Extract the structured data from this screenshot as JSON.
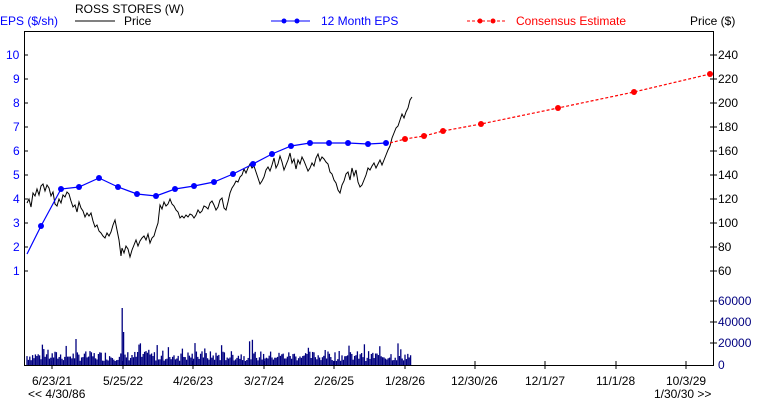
{
  "header": {
    "eps_axis_label": "EPS ($/sh)",
    "company": "ROSS STORES (W)",
    "legend_price": "Price",
    "legend_eps": "12 Month EPS",
    "legend_consensus": "Consensus Estimate",
    "price_axis_label": "Price ($)"
  },
  "footer": {
    "range_start": "<< 4/30/86",
    "range_end": "1/30/30 >>"
  },
  "colors": {
    "eps": "#0000ff",
    "consensus": "#ff0000",
    "price": "#000000",
    "volume": "#000080",
    "eps_axis_text": "#0000ff",
    "volume_axis_text": "#000080"
  },
  "chart_data": {
    "type": "line",
    "title": "ROSS STORES (W)",
    "xlabel": "",
    "x_ticks": [
      "6/23/21",
      "5/25/22",
      "4/26/23",
      "3/27/24",
      "2/26/25",
      "1/28/26",
      "12/30/26",
      "12/1/27",
      "11/1/28",
      "10/3/29"
    ],
    "left_axis": {
      "label": "EPS ($/sh)",
      "ticks": [
        1,
        2,
        3,
        4,
        5,
        6,
        7,
        8,
        9,
        10
      ]
    },
    "right_axis_price": {
      "label": "Price ($)",
      "ticks": [
        60,
        80,
        100,
        120,
        140,
        160,
        180,
        200,
        220,
        240
      ]
    },
    "right_axis_volume": {
      "ticks": [
        0,
        20000,
        40000,
        60000
      ]
    },
    "series": [
      {
        "name": "12 Month EPS",
        "axis": "left",
        "style": "solid line with dots",
        "dates": [
          "4/2021",
          "6/2021",
          "9/2021",
          "12/2021",
          "3/2022",
          "6/2022",
          "9/2022",
          "12/2022",
          "3/2023",
          "6/2023",
          "9/2023",
          "12/2023",
          "3/2024",
          "6/2024",
          "9/2024",
          "12/2024",
          "3/2025",
          "6/2025",
          "9/2025",
          "12/2025"
        ],
        "values": [
          1.7,
          2.9,
          4.4,
          4.5,
          4.85,
          4.5,
          4.2,
          4.1,
          4.4,
          4.5,
          4.7,
          5.0,
          5.45,
          5.85,
          6.2,
          6.35,
          6.35,
          6.35,
          6.3,
          6.35
        ]
      },
      {
        "name": "Consensus Estimate",
        "axis": "left",
        "style": "dashed line with dots",
        "dates": [
          "12/2025",
          "3/2026",
          "6/2026",
          "9/2026",
          "1/2027",
          "1/2028",
          "1/2029",
          "1/2030"
        ],
        "values": [
          6.35,
          6.55,
          6.7,
          6.9,
          7.2,
          7.85,
          8.5,
          9.25
        ]
      },
      {
        "name": "Price",
        "axis": "right_price",
        "style": "solid line",
        "approx_points": [
          {
            "date": "4/2021",
            "value": 120
          },
          {
            "date": "7/2021",
            "value": 127
          },
          {
            "date": "10/2021",
            "value": 113
          },
          {
            "date": "1/2022",
            "value": 115
          },
          {
            "date": "4/2022",
            "value": 100
          },
          {
            "date": "6/2022",
            "value": 73
          },
          {
            "date": "9/2022",
            "value": 88
          },
          {
            "date": "11/2022",
            "value": 116
          },
          {
            "date": "2/2023",
            "value": 108
          },
          {
            "date": "5/2023",
            "value": 100
          },
          {
            "date": "8/2023",
            "value": 115
          },
          {
            "date": "12/2023",
            "value": 138
          },
          {
            "date": "3/2024",
            "value": 147
          },
          {
            "date": "6/2024",
            "value": 142
          },
          {
            "date": "9/2024",
            "value": 150
          },
          {
            "date": "12/2024",
            "value": 152
          },
          {
            "date": "3/2025",
            "value": 133
          },
          {
            "date": "6/2025",
            "value": 128
          },
          {
            "date": "9/2025",
            "value": 150
          },
          {
            "date": "11/2025",
            "value": 160
          },
          {
            "date": "1/2026",
            "value": 186
          },
          {
            "date": "2/2026",
            "value": 202
          }
        ]
      },
      {
        "name": "Volume",
        "axis": "right_volume",
        "style": "bars",
        "notes": "Weekly volume mostly 5000-15000, spike ~48000 around 5/2022"
      }
    ],
    "legend_position": "top",
    "grid": false
  }
}
